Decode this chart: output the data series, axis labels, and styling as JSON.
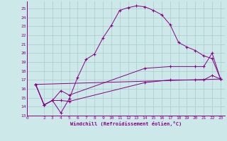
{
  "xlabel": "Windchill (Refroidissement éolien,°C)",
  "background_color": "#cce8e8",
  "grid_color": "#aacccc",
  "line_color": "#880088",
  "xlim": [
    0,
    23.5
  ],
  "ylim": [
    13,
    25.8
  ],
  "yticks": [
    13,
    14,
    15,
    16,
    17,
    18,
    19,
    20,
    21,
    22,
    23,
    24,
    25
  ],
  "xticks": [
    0,
    2,
    3,
    4,
    5,
    6,
    7,
    8,
    9,
    10,
    11,
    12,
    13,
    14,
    15,
    16,
    17,
    18,
    19,
    20,
    21,
    22,
    23
  ],
  "curve1_x": [
    1,
    2,
    3,
    4,
    5,
    6,
    7,
    8,
    9,
    10,
    11,
    12,
    13,
    14,
    15,
    16,
    17,
    18,
    19,
    20,
    21,
    22,
    23
  ],
  "curve1_y": [
    16.5,
    14.2,
    14.7,
    13.3,
    14.9,
    17.3,
    19.3,
    19.9,
    21.7,
    23.1,
    24.8,
    25.1,
    25.3,
    25.2,
    24.8,
    24.3,
    23.2,
    21.2,
    20.7,
    20.3,
    19.7,
    19.4,
    17.1
  ],
  "curve2_x": [
    1,
    2,
    3,
    4,
    5,
    14,
    17,
    20,
    21,
    22,
    23
  ],
  "curve2_y": [
    16.5,
    14.2,
    14.7,
    15.8,
    15.3,
    18.3,
    18.5,
    18.5,
    18.5,
    20.0,
    17.1
  ],
  "curve3_x": [
    1,
    2,
    3,
    4,
    5,
    14,
    17,
    20,
    21,
    22,
    23
  ],
  "curve3_y": [
    16.5,
    14.2,
    14.7,
    14.7,
    14.6,
    16.7,
    17.0,
    17.0,
    17.0,
    17.5,
    17.1
  ],
  "curve4_x": [
    1,
    23
  ],
  "curve4_y": [
    16.5,
    17.1
  ]
}
